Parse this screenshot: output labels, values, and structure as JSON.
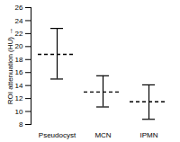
{
  "chart_data": {
    "type": "errorbar",
    "y_label": "ROI attenuation (HU)",
    "categories": [
      "Pseudocyst",
      "MCN",
      "IPMN"
    ],
    "values": [
      18.8,
      13.0,
      11.5
    ],
    "lower": [
      15.0,
      10.7,
      8.8
    ],
    "upper": [
      22.8,
      15.5,
      14.1
    ],
    "color": "#000000",
    "line_style": "dashed",
    "ylim": [
      8,
      26
    ],
    "yticks": [
      8,
      10,
      12,
      14,
      16,
      18,
      20,
      22,
      24,
      26
    ],
    "grid": false
  }
}
